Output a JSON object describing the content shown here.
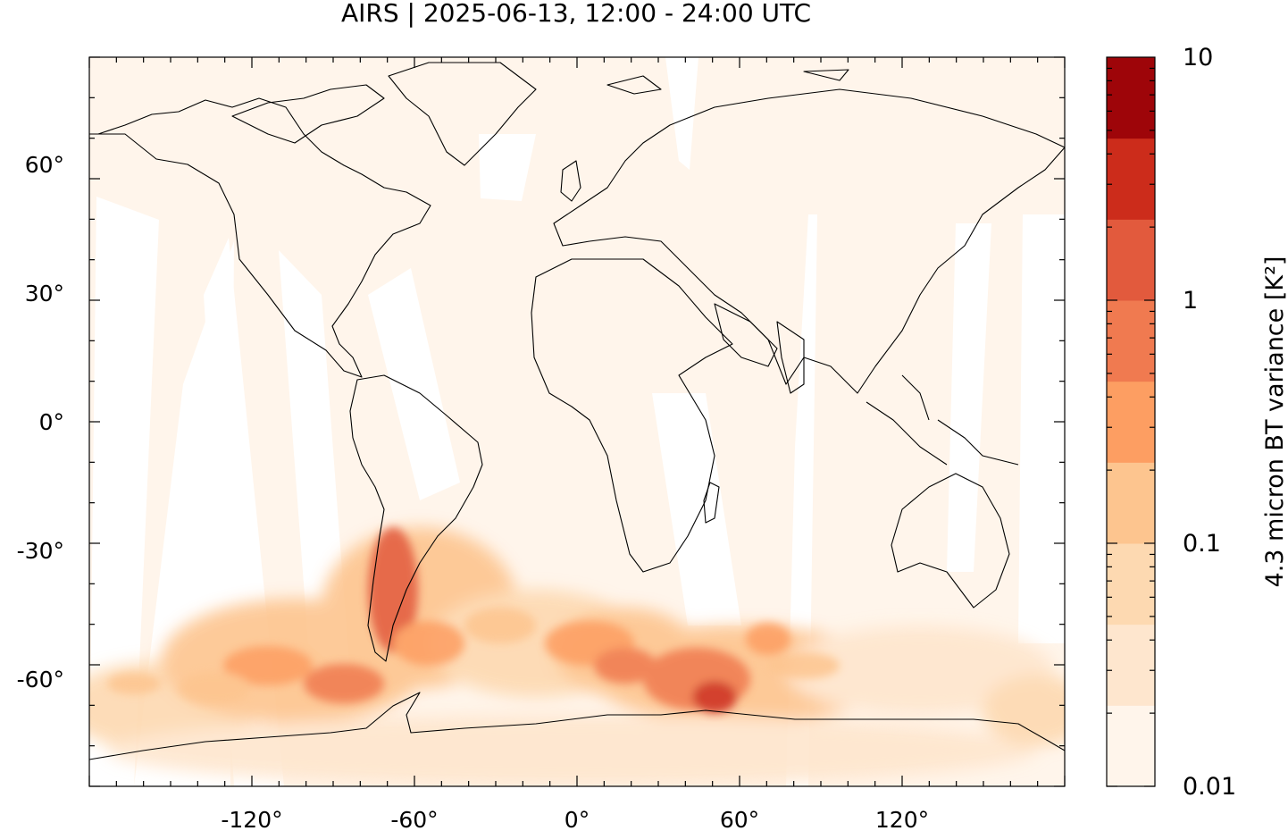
{
  "title": "AIRS | 2025-06-13, 12:00 - 24:00 UTC",
  "map": {
    "projection": "equirectangular",
    "lon_range": [
      -180,
      180
    ],
    "lat_range": [
      -90,
      90
    ],
    "x_ticks": [
      {
        "value": -120,
        "label": "-120°"
      },
      {
        "value": -60,
        "label": "-60°"
      },
      {
        "value": 0,
        "label": "0°"
      },
      {
        "value": 60,
        "label": "60°"
      },
      {
        "value": 120,
        "label": "120°"
      }
    ],
    "y_ticks": [
      {
        "value": 60,
        "label": "60°"
      },
      {
        "value": 30,
        "label": "30°"
      },
      {
        "value": 0,
        "label": "0°"
      },
      {
        "value": -30,
        "label": "-30°"
      },
      {
        "value": -60,
        "label": "-60°"
      }
    ],
    "background_color": "#fff5eb",
    "coastline_color": "#000000"
  },
  "colorbar": {
    "label": "4.3 micron BT variance [K²]",
    "scale": "log",
    "range": [
      0.01,
      10
    ],
    "ticks": [
      {
        "value": 10,
        "label": "10"
      },
      {
        "value": 1,
        "label": "1"
      },
      {
        "value": 0.1,
        "label": "0.1"
      },
      {
        "value": 0.01,
        "label": "0.01"
      }
    ],
    "colors": [
      "#fff5eb",
      "#fee6ce",
      "#fdd9b1",
      "#fdc58f",
      "#fd9e62",
      "#f07a50",
      "#e25a3d",
      "#cc2c1b",
      "#9e0509"
    ]
  }
}
